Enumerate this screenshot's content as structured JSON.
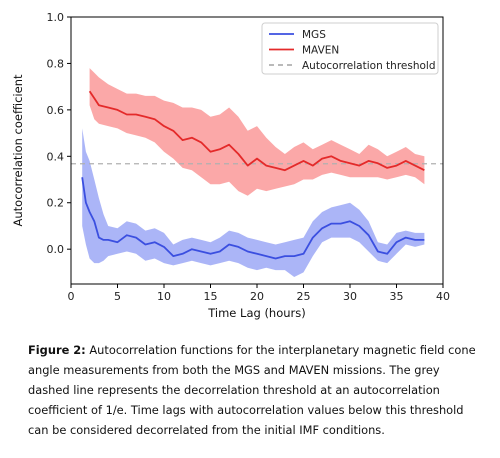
{
  "chart_data": {
    "type": "line",
    "xlabel": "Time Lag (hours)",
    "ylabel": "Autocorrelation coefficient",
    "xlim": [
      0,
      40
    ],
    "ylim": [
      -0.15,
      1.0
    ],
    "xticks": [
      0,
      5,
      10,
      15,
      20,
      25,
      30,
      35,
      40
    ],
    "yticks": [
      0.0,
      0.2,
      0.4,
      0.6,
      0.8,
      1.0
    ],
    "ytick_labels": [
      "0.0",
      "0.2",
      "0.4",
      "0.6",
      "0.8",
      "1.0"
    ],
    "grid": false,
    "legend_position": "top-right",
    "threshold": {
      "name": "Autocorrelation threshold",
      "value": 0.368,
      "color": "#b0b0b0",
      "style": "dashed"
    },
    "series": [
      {
        "name": "MGS",
        "color": "#3b4fe0",
        "band_color": "#8f9cf4",
        "x": [
          1.2,
          1.6,
          2.0,
          2.5,
          3.0,
          3.5,
          4.0,
          5.0,
          6.0,
          7.0,
          8.0,
          9.0,
          10.0,
          11.0,
          12.0,
          13.0,
          14.0,
          15.0,
          16.0,
          17.0,
          18.0,
          19.0,
          20.0,
          21.0,
          22.0,
          23.0,
          24.0,
          25.0,
          26.0,
          27.0,
          28.0,
          29.0,
          30.0,
          31.0,
          32.0,
          33.0,
          34.0,
          35.0,
          36.0,
          37.0,
          38.0
        ],
        "y": [
          0.31,
          0.2,
          0.16,
          0.12,
          0.05,
          0.04,
          0.04,
          0.03,
          0.06,
          0.05,
          0.02,
          0.03,
          0.01,
          -0.03,
          -0.02,
          0.0,
          -0.01,
          -0.02,
          -0.01,
          0.02,
          0.01,
          -0.01,
          -0.02,
          -0.03,
          -0.04,
          -0.03,
          -0.03,
          -0.02,
          0.05,
          0.09,
          0.11,
          0.11,
          0.12,
          0.1,
          0.06,
          -0.01,
          -0.02,
          0.03,
          0.05,
          0.04,
          0.04
        ],
        "lower": [
          0.1,
          0.02,
          -0.04,
          -0.06,
          -0.06,
          -0.05,
          -0.03,
          -0.02,
          -0.01,
          -0.02,
          -0.05,
          -0.04,
          -0.06,
          -0.07,
          -0.06,
          -0.05,
          -0.06,
          -0.07,
          -0.06,
          -0.05,
          -0.06,
          -0.08,
          -0.09,
          -0.08,
          -0.09,
          -0.09,
          -0.12,
          -0.1,
          -0.03,
          0.03,
          0.05,
          0.05,
          0.05,
          0.03,
          -0.01,
          -0.05,
          -0.06,
          -0.02,
          0.02,
          0.01,
          0.02
        ],
        "upper": [
          0.52,
          0.42,
          0.38,
          0.3,
          0.22,
          0.15,
          0.1,
          0.09,
          0.12,
          0.11,
          0.08,
          0.09,
          0.07,
          0.02,
          0.04,
          0.05,
          0.04,
          0.03,
          0.05,
          0.08,
          0.07,
          0.05,
          0.04,
          0.03,
          0.02,
          0.03,
          0.04,
          0.05,
          0.12,
          0.16,
          0.18,
          0.19,
          0.2,
          0.17,
          0.12,
          0.03,
          0.02,
          0.07,
          0.08,
          0.07,
          0.07
        ]
      },
      {
        "name": "MAVEN",
        "color": "#e42a2a",
        "band_color": "#f98b8b",
        "x": [
          2.0,
          2.5,
          3.0,
          4.0,
          5.0,
          6.0,
          7.0,
          8.0,
          9.0,
          10.0,
          11.0,
          12.0,
          13.0,
          14.0,
          15.0,
          16.0,
          17.0,
          18.0,
          19.0,
          20.0,
          21.0,
          22.0,
          23.0,
          24.0,
          25.0,
          26.0,
          27.0,
          28.0,
          29.0,
          30.0,
          31.0,
          32.0,
          33.0,
          34.0,
          35.0,
          36.0,
          37.0,
          38.0
        ],
        "y": [
          0.68,
          0.65,
          0.62,
          0.61,
          0.6,
          0.58,
          0.58,
          0.57,
          0.56,
          0.53,
          0.51,
          0.47,
          0.48,
          0.46,
          0.42,
          0.43,
          0.45,
          0.41,
          0.36,
          0.39,
          0.36,
          0.35,
          0.34,
          0.36,
          0.38,
          0.36,
          0.39,
          0.4,
          0.38,
          0.37,
          0.36,
          0.38,
          0.37,
          0.35,
          0.36,
          0.38,
          0.36,
          0.34
        ],
        "lower": [
          0.62,
          0.56,
          0.54,
          0.53,
          0.52,
          0.5,
          0.49,
          0.48,
          0.46,
          0.42,
          0.39,
          0.35,
          0.34,
          0.31,
          0.28,
          0.28,
          0.29,
          0.25,
          0.23,
          0.26,
          0.25,
          0.26,
          0.27,
          0.28,
          0.3,
          0.3,
          0.32,
          0.33,
          0.32,
          0.31,
          0.31,
          0.31,
          0.31,
          0.3,
          0.31,
          0.32,
          0.31,
          0.28
        ],
        "upper": [
          0.78,
          0.76,
          0.74,
          0.71,
          0.69,
          0.67,
          0.67,
          0.66,
          0.66,
          0.64,
          0.63,
          0.61,
          0.61,
          0.6,
          0.57,
          0.58,
          0.61,
          0.57,
          0.51,
          0.53,
          0.48,
          0.44,
          0.41,
          0.44,
          0.46,
          0.43,
          0.45,
          0.47,
          0.45,
          0.43,
          0.41,
          0.45,
          0.43,
          0.4,
          0.42,
          0.44,
          0.41,
          0.4
        ]
      }
    ]
  },
  "caption": {
    "label": "Figure 2:",
    "text": " Autocorrelation functions for the interplanetary magnetic field cone angle measurements from both the MGS and MAVEN missions. The grey dashed line represents the decorrelation threshold at an autocorrelation coefficient of 1/e. Time lags with autocorrelation values below this threshold can be considered decorrelated from the initial IMF conditions."
  }
}
